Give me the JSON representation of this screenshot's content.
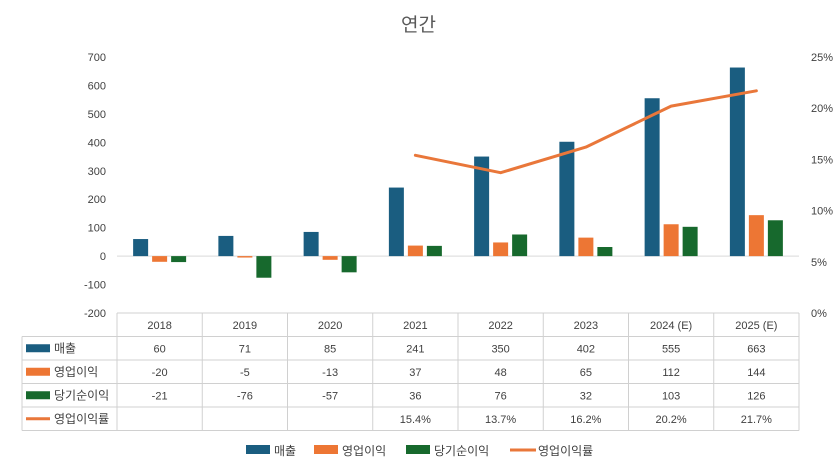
{
  "chart_data": {
    "type": "bar",
    "title": "연간",
    "categories": [
      "2018",
      "2019",
      "2020",
      "2021",
      "2022",
      "2023",
      "2024 (E)",
      "2025 (E)"
    ],
    "ylim": [
      -200,
      700
    ],
    "yticks": [
      -200,
      -100,
      0,
      100,
      200,
      300,
      400,
      500,
      600,
      700
    ],
    "y2lim": [
      0,
      25
    ],
    "y2ticks": [
      "0%",
      "5%",
      "10%",
      "15%",
      "20%",
      "25%"
    ],
    "grid": false,
    "legend_position": "bottom",
    "data_table": true,
    "series": [
      {
        "name": "매출",
        "kind": "bar",
        "axis": "left",
        "color": "#1a5d80",
        "values": [
          60,
          71,
          85,
          241,
          350,
          402,
          555,
          663
        ],
        "labels": [
          "60",
          "71",
          "85",
          "241",
          "350",
          "402",
          "555",
          "663"
        ]
      },
      {
        "name": "영업이익",
        "kind": "bar",
        "axis": "left",
        "color": "#ed7634",
        "values": [
          -20,
          -5,
          -13,
          37,
          48,
          65,
          112,
          144
        ],
        "labels": [
          "-20",
          "-5",
          "-13",
          "37",
          "48",
          "65",
          "112",
          "144"
        ]
      },
      {
        "name": "당기순이익",
        "kind": "bar",
        "axis": "left",
        "color": "#17692d",
        "values": [
          -21,
          -76,
          -57,
          36,
          76,
          32,
          103,
          126
        ],
        "labels": [
          "-21",
          "-76",
          "-57",
          "36",
          "76",
          "32",
          "103",
          "126"
        ]
      },
      {
        "name": "영업이익률",
        "kind": "line",
        "axis": "right",
        "color": "#e9773a",
        "values": [
          null,
          null,
          null,
          15.4,
          13.7,
          16.2,
          20.2,
          21.7
        ],
        "labels": [
          "",
          "",
          "",
          "15.4%",
          "13.7%",
          "16.2%",
          "20.2%",
          "21.7%"
        ]
      }
    ]
  }
}
